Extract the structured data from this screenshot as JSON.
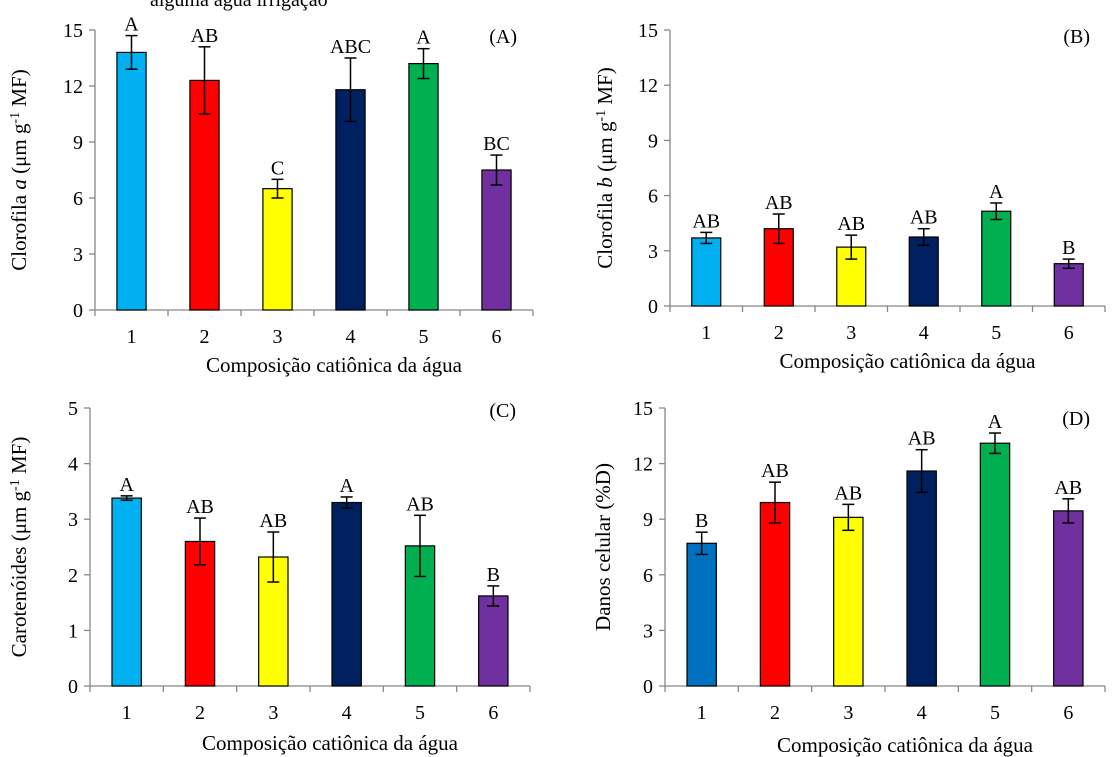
{
  "top_text": "alguma água irrigação",
  "chart_data": [
    {
      "type": "bar",
      "panel_label": "(A)",
      "categories": [
        "1",
        "2",
        "3",
        "4",
        "5",
        "6"
      ],
      "values": [
        13.8,
        12.3,
        6.5,
        11.8,
        13.2,
        7.5
      ],
      "errors": [
        0.9,
        1.8,
        0.5,
        1.7,
        0.8,
        0.8
      ],
      "letters": [
        "A",
        "AB",
        "C",
        "ABC",
        "A",
        "BC"
      ],
      "colors": [
        "#00b0f0",
        "#ff0000",
        "#ffff00",
        "#002060",
        "#00b050",
        "#7030a0"
      ],
      "ylim": [
        0,
        15
      ],
      "yticks": [
        "0",
        "3",
        "6",
        "9",
        "12",
        "15"
      ],
      "xlabel": "Composição catiônica da água",
      "ylabel_pre": "Clorofila ",
      "ylabel_italic": "a",
      "ylabel_unit": " (μm g",
      "ylabel_sup": "-1",
      "ylabel_post": " MF)"
    },
    {
      "type": "bar",
      "panel_label": "(B)",
      "categories": [
        "1",
        "2",
        "3",
        "4",
        "5",
        "6"
      ],
      "values": [
        3.7,
        4.2,
        3.2,
        3.75,
        5.15,
        2.3
      ],
      "errors": [
        0.3,
        0.8,
        0.65,
        0.45,
        0.45,
        0.25
      ],
      "letters": [
        "AB",
        "AB",
        "AB",
        "AB",
        "A",
        "B"
      ],
      "colors": [
        "#00b0f0",
        "#ff0000",
        "#ffff00",
        "#002060",
        "#00b050",
        "#7030a0"
      ],
      "ylim": [
        0,
        15
      ],
      "yticks": [
        "0",
        "3",
        "6",
        "9",
        "12",
        "15"
      ],
      "xlabel": "Composição catiônica da água",
      "ylabel_pre": "Clorofila ",
      "ylabel_italic": "b",
      "ylabel_unit": " (μm g",
      "ylabel_sup": "-1",
      "ylabel_post": " MF)"
    },
    {
      "type": "bar",
      "panel_label": "(C)",
      "categories": [
        "1",
        "2",
        "3",
        "4",
        "5",
        "6"
      ],
      "values": [
        3.38,
        2.6,
        2.32,
        3.3,
        2.52,
        1.62
      ],
      "errors": [
        0.04,
        0.42,
        0.45,
        0.1,
        0.55,
        0.18
      ],
      "letters": [
        "A",
        "AB",
        "AB",
        "A",
        "AB",
        "B"
      ],
      "colors": [
        "#00b0f0",
        "#ff0000",
        "#ffff00",
        "#002060",
        "#00b050",
        "#7030a0"
      ],
      "ylim": [
        0,
        5
      ],
      "yticks": [
        "0",
        "1",
        "2",
        "3",
        "4",
        "5"
      ],
      "xlabel": "Composição catiônica da água",
      "ylabel_pre": "Carotenóides ",
      "ylabel_italic": "",
      "ylabel_unit": "(μm g",
      "ylabel_sup": "-1",
      "ylabel_post": " MF)"
    },
    {
      "type": "bar",
      "panel_label": "(D)",
      "categories": [
        "1",
        "2",
        "3",
        "4",
        "5",
        "6"
      ],
      "values": [
        7.7,
        9.9,
        9.1,
        11.6,
        13.1,
        9.45
      ],
      "errors": [
        0.6,
        1.1,
        0.7,
        1.15,
        0.55,
        0.65
      ],
      "letters": [
        "B",
        "AB",
        "AB",
        "AB",
        "A",
        "AB"
      ],
      "colors": [
        "#0070c0",
        "#ff0000",
        "#ffff00",
        "#002060",
        "#00b050",
        "#7030a0"
      ],
      "ylim": [
        0,
        15
      ],
      "yticks": [
        "0",
        "3",
        "6",
        "9",
        "12",
        "15"
      ],
      "xlabel": "Composição catiônica da água",
      "ylabel_pre": "Danos  celular (%D)",
      "ylabel_italic": "",
      "ylabel_unit": "",
      "ylabel_sup": "",
      "ylabel_post": ""
    }
  ]
}
